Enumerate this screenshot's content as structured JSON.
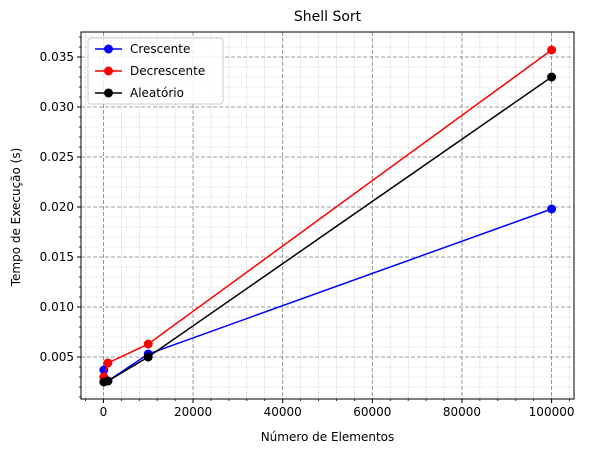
{
  "chart_data": {
    "type": "line",
    "title": "Shell Sort",
    "xlabel": "Número de Elementos",
    "ylabel": "Tempo de Execução (s)",
    "xlim": [
      -5000,
      105000
    ],
    "ylim": [
      0.0008,
      0.0375
    ],
    "x_ticks": [
      0,
      20000,
      40000,
      60000,
      80000,
      100000
    ],
    "x_tick_labels": [
      "0",
      "20000",
      "40000",
      "60000",
      "80000",
      "100000"
    ],
    "y_ticks": [
      0.005,
      0.01,
      0.015,
      0.02,
      0.025,
      0.03,
      0.035
    ],
    "y_tick_labels": [
      "0.005",
      "0.010",
      "0.015",
      "0.020",
      "0.025",
      "0.030",
      "0.035"
    ],
    "grid": true,
    "legend_position": "top-left",
    "x": [
      100,
      1000,
      10000,
      100000
    ],
    "series": [
      {
        "name": "Crescente",
        "color": "#0000ff",
        "values": [
          0.0037,
          0.0026,
          0.0053,
          0.0198
        ]
      },
      {
        "name": "Decrescente",
        "color": "#ff0000",
        "values": [
          0.003,
          0.0044,
          0.0063,
          0.0357
        ]
      },
      {
        "name": "Aleatório",
        "color": "#000000",
        "values": [
          0.0025,
          0.0026,
          0.005,
          0.033
        ]
      }
    ]
  }
}
